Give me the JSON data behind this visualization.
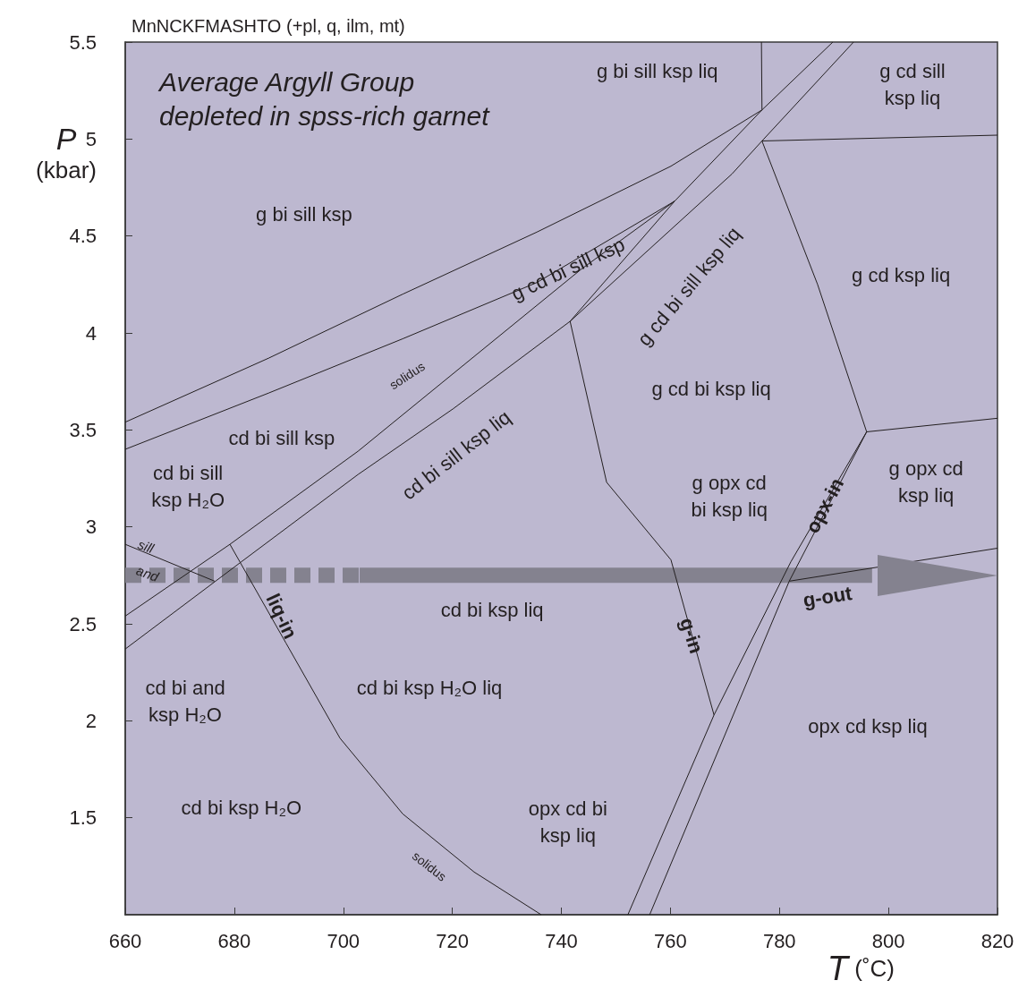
{
  "chart_data": {
    "type": "line",
    "title": "MnNCKFMASHTO (+pl, q, ilm, mt)",
    "subtitle": "Average Argyll Group\ndepleted in spss-rich garnet",
    "xlabel": "T (˚C)",
    "ylabel": "P (kbar)",
    "xlim": [
      660,
      820
    ],
    "xticks": [
      660,
      680,
      700,
      720,
      740,
      760,
      780,
      800,
      820
    ],
    "ylim": [
      1,
      5.5
    ],
    "yticks": [
      1.5,
      2,
      2.5,
      3,
      3.5,
      4,
      4.5,
      5,
      5.5
    ],
    "grid": false,
    "marker": "none",
    "line_style": "solid",
    "series": [
      {
        "color": "#231f20",
        "x": [
          660,
          686.3,
          710.9,
          735.5,
          760.1,
          776.8,
          776.7
        ],
        "values": [
          3.54,
          3.87,
          4.2,
          4.52,
          4.86,
          5.15,
          5.5
        ]
      },
      {
        "color": "#231f20",
        "x": [
          660,
          686.3,
          710.9,
          735.5,
          760.8
        ],
        "values": [
          3.4,
          3.69,
          3.97,
          4.26,
          4.68
        ]
      },
      {
        "color": "#231f20",
        "x": [
          660,
          679.2,
          702.7,
          724.5,
          743.7,
          760.8,
          776.8,
          789.8
        ],
        "values": [
          2.54,
          2.91,
          3.39,
          3.89,
          4.33,
          4.68,
          5.15,
          5.5
        ]
      },
      {
        "color": "#231f20",
        "x": [
          660,
          681.3,
          702.7,
          720.2,
          741.6,
          771.3,
          776.8,
          793.6
        ],
        "values": [
          2.37,
          2.82,
          3.27,
          3.61,
          4.06,
          4.82,
          4.99,
          5.5
        ]
      },
      {
        "color": "#231f20",
        "x": [
          741.6,
          760.8
        ],
        "values": [
          4.06,
          4.68
        ]
      },
      {
        "color": "#231f20",
        "x": [
          776.8,
          820
        ],
        "values": [
          4.99,
          5.02
        ]
      },
      {
        "color": "#231f20",
        "x": [
          741.6,
          748.3,
          760.1,
          768
        ],
        "values": [
          4.06,
          3.23,
          2.83,
          2.03
        ]
      },
      {
        "color": "#231f20",
        "x": [
          776.8,
          787,
          796
        ],
        "values": [
          4.99,
          4.25,
          3.49
        ]
      },
      {
        "color": "#231f20",
        "x": [
          796,
          820
        ],
        "values": [
          3.49,
          3.56
        ]
      },
      {
        "color": "#231f20",
        "x": [
          796,
          782.1,
          768,
          752.2
        ],
        "values": [
          3.49,
          2.82,
          2.03,
          1
        ]
      },
      {
        "color": "#231f20",
        "x": [
          796,
          781.8,
          756.2
        ],
        "values": [
          3.49,
          2.72,
          1
        ]
      },
      {
        "color": "#231f20",
        "x": [
          781.8,
          820
        ],
        "values": [
          2.72,
          2.89
        ]
      },
      {
        "color": "#231f20",
        "x": [
          679.2,
          689.5,
          699.4,
          710.9,
          724,
          736.3
        ],
        "values": [
          2.91,
          2.4,
          1.91,
          1.52,
          1.22,
          1
        ]
      },
      {
        "color": "#231f20",
        "x": [
          660,
          676.4
        ],
        "values": [
          2.91,
          2.72
        ]
      },
      {
        "color": "#84828f",
        "x": [
          660,
          703
        ],
        "values": [
          2.75,
          2.75
        ],
        "line_style": "dashed"
      },
      {
        "color": "#84828f",
        "x": [
          703,
          797
        ],
        "values": [
          2.75,
          2.75
        ]
      }
    ],
    "annotations": [
      "g bi sill ksp",
      "g bi sill ksp liq",
      "g cd sill\nksp liq",
      "g cd bi sill ksp",
      "g cd bi sill ksp liq",
      "g cd ksp liq",
      "g cd bi ksp liq",
      "cd bi sill ksp",
      "cd bi sill ksp liq",
      "cd bi sill\nksp H₂O",
      "sill",
      "and",
      "cd bi and\nksp H₂O",
      "cd bi ksp liq",
      "g opx cd\nbi ksp liq",
      "g opx cd\nksp liq",
      "opx cd ksp liq",
      "cd bi ksp H₂O liq",
      "cd bi ksp H₂O",
      "opx cd bi\nksp liq",
      "solidus",
      "solidus",
      "liq-in",
      "g-in",
      "opx-in",
      "g-out"
    ]
  }
}
